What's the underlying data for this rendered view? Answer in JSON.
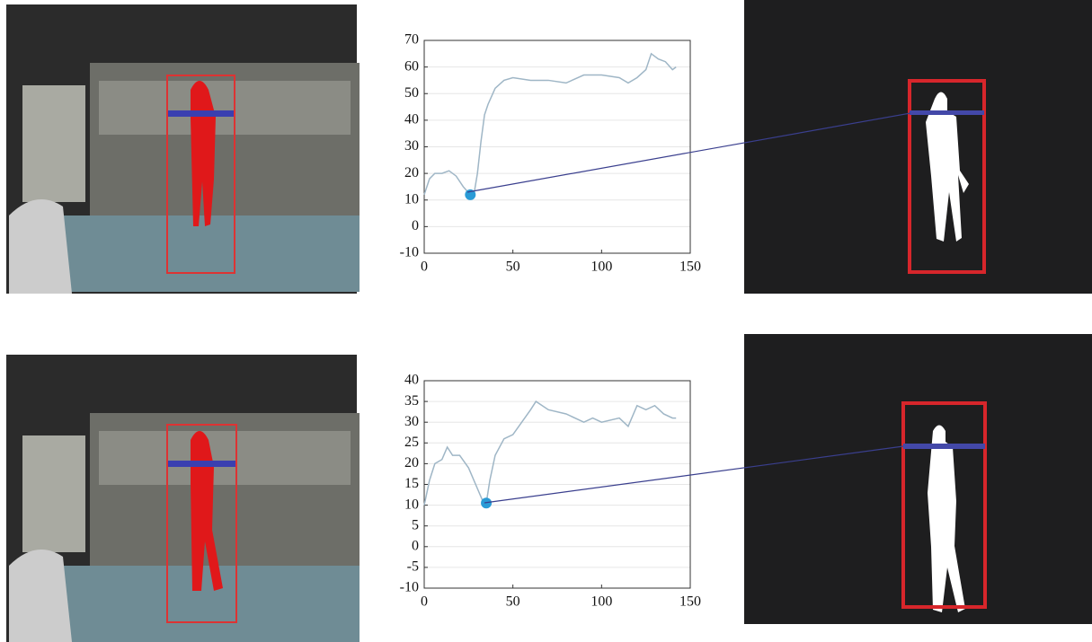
{
  "chart_data": [
    {
      "type": "line",
      "x": [
        0,
        3,
        6,
        10,
        14,
        18,
        22,
        26,
        28,
        30,
        32,
        34,
        36,
        40,
        45,
        50,
        60,
        70,
        80,
        90,
        100,
        110,
        115,
        120,
        125,
        128,
        132,
        136,
        140,
        142
      ],
      "values": [
        12,
        18,
        20,
        20,
        21,
        19,
        15,
        12,
        12,
        20,
        32,
        42,
        46,
        52,
        55,
        56,
        55,
        55,
        54,
        57,
        57,
        56,
        54,
        56,
        59,
        65,
        63,
        62,
        59,
        60
      ],
      "color": "#9fb6c6",
      "marker": {
        "x": 26,
        "y": 12,
        "color": "#2a9bd6"
      },
      "xlim": [
        0,
        150
      ],
      "xticks": [
        0,
        50,
        100,
        150
      ],
      "ylim": [
        -10,
        70
      ],
      "yticks": [
        -10,
        0,
        10,
        20,
        30,
        40,
        50,
        60,
        70
      ],
      "grid": true
    },
    {
      "type": "line",
      "x": [
        0,
        3,
        6,
        10,
        13,
        16,
        20,
        25,
        30,
        33,
        35,
        37,
        40,
        45,
        50,
        55,
        60,
        63,
        70,
        80,
        90,
        95,
        100,
        110,
        115,
        120,
        125,
        130,
        135,
        140,
        142
      ],
      "values": [
        10,
        16,
        20,
        21,
        24,
        22,
        22,
        19,
        14,
        11,
        10.5,
        16,
        22,
        26,
        27,
        30,
        33,
        35,
        33,
        32,
        30,
        31,
        30,
        31,
        29,
        34,
        33,
        34,
        32,
        31,
        31
      ],
      "color": "#9fb6c6",
      "marker": {
        "x": 35,
        "y": 10.5,
        "color": "#2a9bd6"
      },
      "xlim": [
        0,
        150
      ],
      "xticks": [
        0,
        50,
        100,
        150
      ],
      "ylim": [
        -10,
        40
      ],
      "yticks": [
        -10,
        -5,
        0,
        5,
        10,
        15,
        20,
        25,
        30,
        35,
        40
      ],
      "grid": true
    }
  ]
}
